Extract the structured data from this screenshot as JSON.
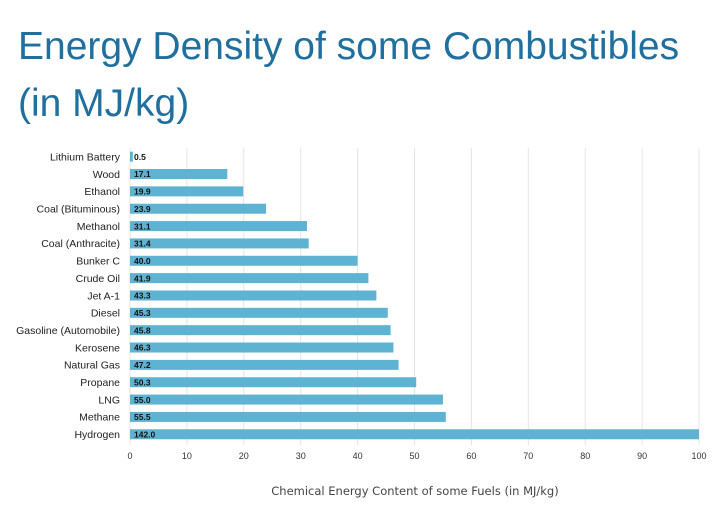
{
  "chart_data": {
    "type": "bar",
    "orientation": "horizontal",
    "title": "Energy Density of some Combustibles (in MJ/kg)",
    "xlabel": "Chemical Energy Content of some Fuels (in MJ/kg)",
    "ylabel": "",
    "xlim": [
      0,
      100
    ],
    "xticks": [
      0,
      10,
      20,
      30,
      40,
      50,
      60,
      70,
      80,
      90,
      100
    ],
    "grid": true,
    "categories": [
      "Lithium Battery",
      "Wood",
      "Ethanol",
      "Coal (Bituminous)",
      "Methanol",
      "Coal (Anthracite)",
      "Bunker C",
      "Crude Oil",
      "Jet A-1",
      "Diesel",
      "Gasoline (Automobile)",
      "Kerosene",
      "Natural Gas",
      "Propane",
      "LNG",
      "Methane",
      "Hydrogen"
    ],
    "values": [
      0.5,
      17.1,
      19.9,
      23.9,
      31.1,
      31.4,
      40.0,
      41.9,
      43.3,
      45.3,
      45.8,
      46.3,
      47.2,
      50.3,
      55.0,
      55.5,
      142.0
    ],
    "value_labels": [
      "0.5",
      "17.1",
      "19.9",
      "23.9",
      "31.1",
      "31.4",
      "40.0",
      "41.9",
      "43.3",
      "45.3",
      "45.8",
      "46.3",
      "47.2",
      "50.3",
      "55.0",
      "55.5",
      "142.0"
    ],
    "bar_color": "#5fb3d2",
    "grid_color": "#e4e4e4"
  }
}
